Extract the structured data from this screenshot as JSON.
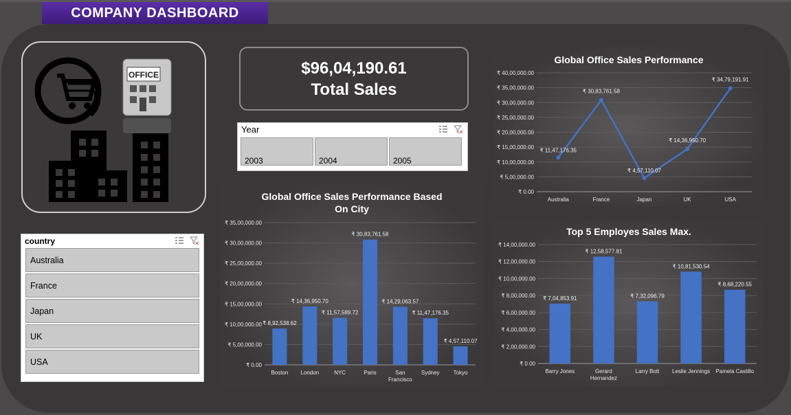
{
  "header": {
    "title": "COMPANY DASHBOARD"
  },
  "summary": {
    "total_sales_value": "$96,04,190.61",
    "total_sales_label": "Total Sales"
  },
  "year_slicer": {
    "title": "Year",
    "items": [
      "2003",
      "2004",
      "2005"
    ]
  },
  "country_slicer": {
    "title": "country",
    "items": [
      "Australia",
      "France",
      "Japan",
      "UK",
      "USA"
    ]
  },
  "logo": {
    "icons": [
      "shopping-cart-at-icon",
      "office-building-icon",
      "buildings-icon"
    ],
    "office_sign": "OFFICE"
  },
  "colors": {
    "bar": "#4472c4",
    "line": "#4472c4",
    "banner": "#4b2490"
  },
  "chart_data": [
    {
      "type": "line",
      "title": "Global Office Sales Performance",
      "categories": [
        "Australia",
        "France",
        "Japan",
        "UK",
        "USA"
      ],
      "values": [
        1147176.35,
        3083761.58,
        457110.07,
        1436950.7,
        3479191.91
      ],
      "labels": [
        "₹ 11,47,176.35",
        "₹ 30,83,761.58",
        "₹ 4,57,110.07",
        "₹ 14,36,950.70",
        "₹ 34,79,191.91"
      ],
      "y_ticks": [
        "₹ 0.00",
        "₹ 5,00,000.00",
        "₹ 10,00,000.00",
        "₹ 15,00,000.00",
        "₹ 20,00,000.00",
        "₹ 25,00,000.00",
        "₹ 30,00,000.00",
        "₹ 35,00,000.00",
        "₹ 40,00,000.00"
      ],
      "ylim": [
        0,
        4000000
      ],
      "grid": true
    },
    {
      "type": "bar",
      "title": "Global Office Sales Performance Based On City",
      "title_lines": [
        "Global Office Sales Performance Based",
        "On City"
      ],
      "categories": [
        "Boston",
        "London",
        "NYC",
        "Paris",
        "San Francisco",
        "Sydney",
        "Tokyo"
      ],
      "category_lines": [
        [
          "Boston"
        ],
        [
          "London"
        ],
        [
          "NYC"
        ],
        [
          "Paris"
        ],
        [
          "San",
          "Francisco"
        ],
        [
          "Sydney"
        ],
        [
          "Tokyo"
        ]
      ],
      "values": [
        892538.62,
        1436950.7,
        1157589.72,
        3083761.58,
        1429063.57,
        1147176.35,
        457110.07
      ],
      "labels": [
        "₹ 8,92,538.62",
        "₹ 14,36,950.70",
        "₹ 11,57,589.72",
        "₹ 30,83,761.58",
        "₹ 14,29,063.57",
        "₹ 11,47,176.35",
        "₹ 4,57,110.07"
      ],
      "y_ticks": [
        "₹ 0.00",
        "₹ 5,00,000.00",
        "₹ 10,00,000.00",
        "₹ 15,00,000.00",
        "₹ 20,00,000.00",
        "₹ 25,00,000.00",
        "₹ 30,00,000.00",
        "₹ 35,00,000.00"
      ],
      "ylim": [
        0,
        3500000
      ],
      "grid": true
    },
    {
      "type": "bar",
      "title": "Top 5 Employes Sales Max.",
      "categories": [
        "Barry Jones",
        "Gerard Hernandez",
        "Larry Bott",
        "Leslie Jennings",
        "Pamela Castillo"
      ],
      "category_lines": [
        [
          "Barry Jones"
        ],
        [
          "Gerard",
          "Hernandez"
        ],
        [
          "Larry Bott"
        ],
        [
          "Leslie Jennings"
        ],
        [
          "Pamela Castillo"
        ]
      ],
      "values": [
        704853.91,
        1258577.81,
        732096.79,
        1081530.54,
        868220.55
      ],
      "labels": [
        "₹ 7,04,853.91",
        "₹ 12,58,577.81",
        "₹ 7,32,096.79",
        "₹ 10,81,530.54",
        "₹ 8,68,220.55"
      ],
      "y_ticks": [
        "₹ 0.00",
        "₹ 2,00,000.00",
        "₹ 4,00,000.00",
        "₹ 6,00,000.00",
        "₹ 8,00,000.00",
        "₹ 10,00,000.00",
        "₹ 12,00,000.00",
        "₹ 14,00,000.00"
      ],
      "ylim": [
        0,
        1400000
      ],
      "grid": true
    }
  ]
}
